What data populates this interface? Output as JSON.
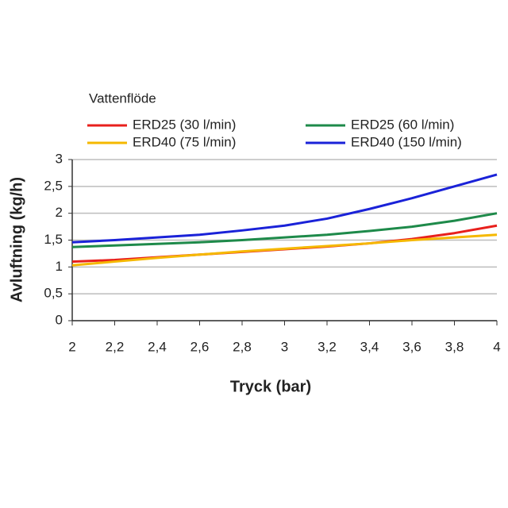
{
  "chart_data": {
    "type": "line",
    "legend_title": "Vattenflöde",
    "xlabel": "Tryck (bar)",
    "ylabel": "Avluftning (kg/h)",
    "x": [
      2,
      2.2,
      2.4,
      2.6,
      2.8,
      3,
      3.2,
      3.4,
      3.6,
      3.8,
      4
    ],
    "series": [
      {
        "name": "ERD25 (30 l/min)",
        "color": "#e8201c",
        "values": [
          1.1,
          1.13,
          1.18,
          1.23,
          1.28,
          1.33,
          1.38,
          1.44,
          1.52,
          1.63,
          1.77
        ]
      },
      {
        "name": "ERD25 (60 l/min)",
        "color": "#1e8a4a",
        "values": [
          1.37,
          1.4,
          1.43,
          1.46,
          1.5,
          1.55,
          1.6,
          1.67,
          1.75,
          1.86,
          2.0
        ]
      },
      {
        "name": "ERD40 (75 l/min)",
        "color": "#f5b800",
        "values": [
          1.03,
          1.1,
          1.17,
          1.23,
          1.29,
          1.34,
          1.39,
          1.44,
          1.5,
          1.55,
          1.6
        ]
      },
      {
        "name": "ERD40 (150 l/min)",
        "color": "#1a22d8",
        "values": [
          1.46,
          1.5,
          1.55,
          1.6,
          1.68,
          1.77,
          1.9,
          2.08,
          2.28,
          2.5,
          2.72
        ]
      }
    ],
    "xlim": [
      2,
      4
    ],
    "xticks": [
      2,
      {
        "value": 2.2,
        "label": "2,2"
      },
      {
        "value": 2.4,
        "label": "2,4"
      },
      {
        "value": 2.6,
        "label": "2,6"
      },
      {
        "value": 2.8,
        "label": "2,8"
      },
      3,
      {
        "value": 3.2,
        "label": "3,2"
      },
      {
        "value": 3.4,
        "label": "3,4"
      },
      {
        "value": 3.6,
        "label": "3,6"
      },
      {
        "value": 3.8,
        "label": "3,8"
      },
      4
    ],
    "ylim": [
      0,
      3
    ],
    "yticks": [
      0,
      {
        "value": 0.5,
        "label": "0,5"
      },
      1,
      {
        "value": 1.5,
        "label": "1,5"
      },
      2,
      {
        "value": 2.5,
        "label": "2,5"
      },
      3
    ],
    "grid": true
  }
}
